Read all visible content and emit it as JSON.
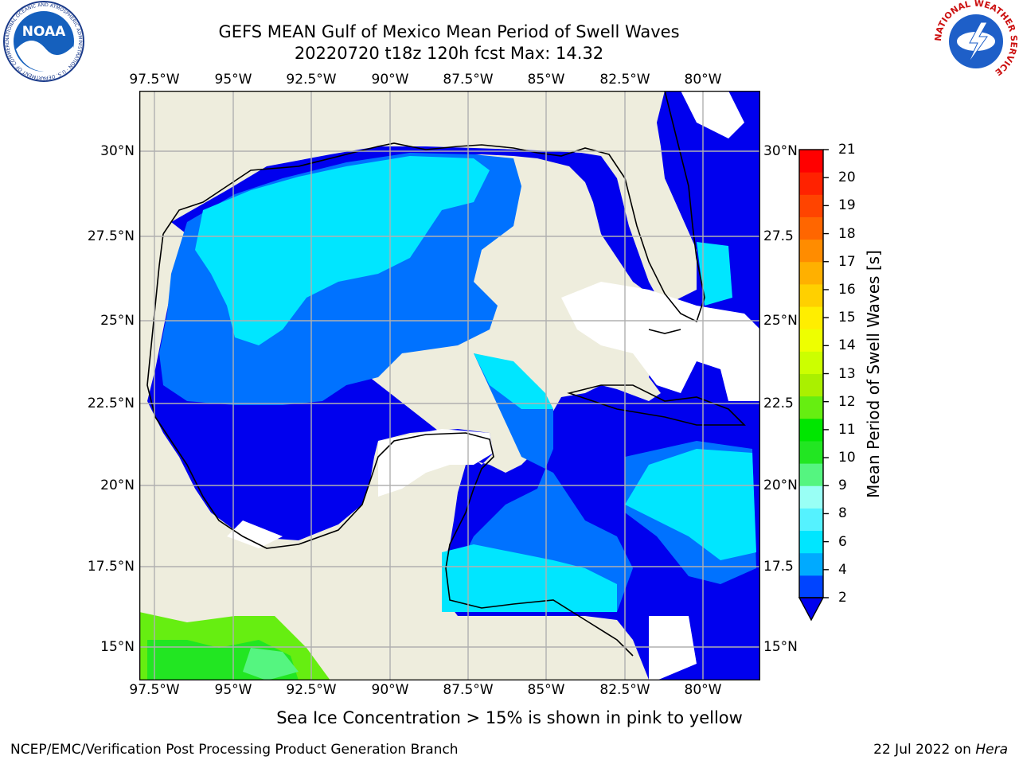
{
  "header": {
    "title_line1": "GEFS MEAN Gulf of Mexico Mean Period of Swell Waves",
    "title_line2": "20220720 t18z 120h fcst   Max: 14.32"
  },
  "map": {
    "lon_labels": [
      "97.5°W",
      "95°W",
      "92.5°W",
      "90°W",
      "87.5°W",
      "85°W",
      "82.5°W",
      "80°W"
    ],
    "lat_labels_left": [
      "30°N",
      "27.5°N",
      "25°N",
      "22.5°N",
      "20°N",
      "17.5°N",
      "15°N"
    ],
    "lat_labels_right": [
      "30°N",
      "27.5",
      "25°N",
      "22.5",
      "20°N",
      "17.5",
      "15°N"
    ],
    "colors": {
      "land": "#eeeddd",
      "no_data": "#ffffff",
      "grid": "#b0b0b0",
      "coast": "#000000"
    }
  },
  "colorbar": {
    "label": "Mean Period of Swell Waves [s]",
    "ticks": [
      "2",
      "4",
      "6",
      "8",
      "9",
      "10",
      "11",
      "12",
      "13",
      "14",
      "15",
      "16",
      "17",
      "18",
      "19",
      "20",
      "21"
    ],
    "colors": [
      "#0044ff",
      "#00aaff",
      "#00e6ff",
      "#55f2ff",
      "#99fff5",
      "#55f580",
      "#22e622",
      "#00e600",
      "#66ee11",
      "#aaf000",
      "#ccff00",
      "#eeff00",
      "#ffee00",
      "#ffd000",
      "#ffb000",
      "#ff8c00",
      "#ff6600",
      "#ff4400",
      "#ff2200",
      "#ff0000"
    ],
    "under_color": "#0000ee"
  },
  "caption": "Sea Ice Concentration > 15% is shown in pink to yellow",
  "footer": {
    "left": "NCEP/EMC/Verification Post Processing Product Generation Branch",
    "date": "22 Jul 2022 on ",
    "host": "Hera"
  },
  "logos": {
    "noaa_text": "NOAA",
    "noaa_ring": "NATIONAL OCEANIC AND ATMOSPHERIC ADMINISTRATION · U.S. DEPARTMENT OF COMMERCE",
    "nws_ring": "NATIONAL WEATHER SERVICE"
  }
}
